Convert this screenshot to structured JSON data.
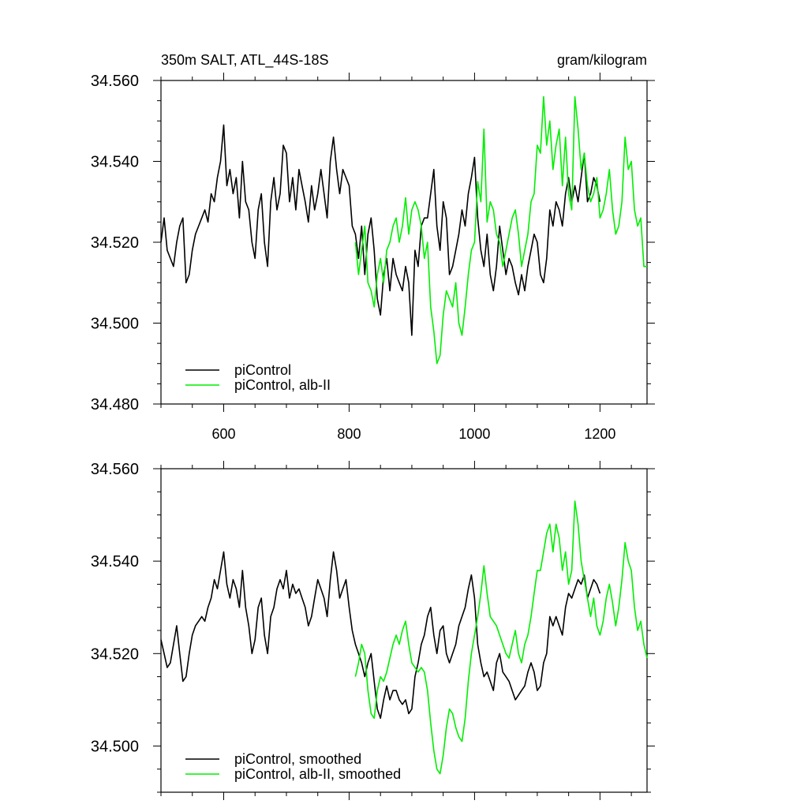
{
  "figure": {
    "title_left": "350m SALT, ATL_44S-18S",
    "title_right": "gram/kilogram"
  },
  "chart_data": [
    {
      "type": "line",
      "title": "350m SALT, ATL_44S-18S",
      "units": "gram/kilogram",
      "xlim": [
        500,
        1275
      ],
      "ylim": [
        34.48,
        34.56
      ],
      "xticks": [
        600,
        800,
        1000,
        1200
      ],
      "xtick_labels": [
        "600",
        "800",
        "1000",
        "1200"
      ],
      "yticks": [
        34.48,
        34.5,
        34.52,
        34.54,
        34.56
      ],
      "ytick_labels": [
        "34.480",
        "34.500",
        "34.520",
        "34.540",
        "34.560"
      ],
      "legend_position": "bottom-left",
      "series": [
        {
          "name": "piControl",
          "color": "#000000",
          "x": [
            500,
            505,
            510,
            515,
            520,
            525,
            530,
            535,
            540,
            545,
            550,
            555,
            560,
            565,
            570,
            575,
            580,
            585,
            590,
            595,
            600,
            605,
            610,
            615,
            620,
            625,
            630,
            635,
            640,
            645,
            650,
            655,
            660,
            665,
            670,
            675,
            680,
            685,
            690,
            695,
            700,
            705,
            710,
            715,
            720,
            725,
            730,
            735,
            740,
            745,
            750,
            755,
            760,
            765,
            770,
            775,
            780,
            785,
            790,
            795,
            800,
            805,
            810,
            815,
            820,
            825,
            830,
            835,
            840,
            845,
            850,
            855,
            860,
            865,
            870,
            875,
            880,
            885,
            890,
            895,
            900,
            905,
            910,
            915,
            920,
            925,
            930,
            935,
            940,
            945,
            950,
            955,
            960,
            965,
            970,
            975,
            980,
            985,
            990,
            995,
            1000,
            1005,
            1010,
            1015,
            1020,
            1025,
            1030,
            1035,
            1040,
            1045,
            1050,
            1055,
            1060,
            1065,
            1070,
            1075,
            1080,
            1085,
            1090,
            1095,
            1100,
            1105,
            1110,
            1115,
            1120,
            1125,
            1130,
            1135,
            1140,
            1145,
            1150,
            1155,
            1160,
            1165,
            1170,
            1175,
            1180,
            1185,
            1190,
            1195,
            1200
          ],
          "y": [
            34.52,
            34.526,
            34.518,
            34.516,
            34.514,
            34.52,
            34.524,
            34.526,
            34.51,
            34.512,
            34.518,
            34.522,
            34.524,
            34.526,
            34.528,
            34.525,
            34.532,
            34.53,
            34.536,
            34.54,
            34.549,
            34.534,
            34.538,
            34.532,
            34.536,
            34.526,
            34.54,
            34.53,
            34.528,
            34.52,
            34.516,
            34.528,
            34.532,
            34.52,
            34.514,
            34.53,
            34.536,
            34.528,
            34.532,
            34.544,
            34.542,
            34.53,
            34.536,
            34.528,
            34.538,
            34.534,
            34.53,
            34.525,
            34.534,
            34.528,
            34.532,
            34.538,
            34.532,
            34.526,
            34.54,
            34.546,
            34.538,
            34.532,
            34.538,
            34.536,
            34.534,
            34.524,
            34.522,
            34.516,
            34.524,
            34.512,
            34.522,
            34.526,
            34.518,
            34.506,
            34.502,
            34.512,
            34.516,
            34.508,
            34.516,
            34.512,
            34.51,
            34.508,
            34.514,
            34.51,
            34.497,
            34.518,
            34.514,
            34.524,
            34.526,
            34.526,
            34.532,
            34.538,
            34.524,
            34.518,
            34.53,
            34.526,
            34.512,
            34.514,
            34.518,
            34.522,
            34.528,
            34.524,
            34.532,
            34.536,
            34.541,
            34.526,
            34.518,
            34.514,
            34.522,
            34.512,
            34.508,
            34.514,
            34.524,
            34.518,
            34.512,
            34.516,
            34.514,
            34.51,
            34.507,
            34.512,
            34.508,
            34.514,
            34.518,
            34.522,
            34.52,
            34.512,
            34.51,
            34.516,
            34.528,
            34.524,
            34.53,
            34.528,
            34.524,
            34.532,
            34.536,
            34.53,
            34.534,
            34.53,
            34.536,
            34.542,
            34.53,
            34.532,
            34.536,
            34.534,
            34.53
          ]
        },
        {
          "name": "piControl, alb-II",
          "color": "#00ee00",
          "x": [
            810,
            815,
            820,
            825,
            830,
            835,
            840,
            845,
            850,
            855,
            860,
            865,
            870,
            875,
            880,
            885,
            890,
            895,
            900,
            905,
            910,
            915,
            920,
            925,
            930,
            935,
            940,
            945,
            950,
            955,
            960,
            965,
            970,
            975,
            980,
            985,
            990,
            995,
            1000,
            1005,
            1010,
            1015,
            1020,
            1025,
            1030,
            1035,
            1040,
            1045,
            1050,
            1055,
            1060,
            1065,
            1070,
            1075,
            1080,
            1085,
            1090,
            1095,
            1100,
            1105,
            1110,
            1115,
            1120,
            1125,
            1130,
            1135,
            1140,
            1145,
            1150,
            1155,
            1160,
            1165,
            1170,
            1175,
            1180,
            1185,
            1190,
            1195,
            1200,
            1205,
            1210,
            1215,
            1220,
            1225,
            1230,
            1235,
            1240,
            1245,
            1250,
            1255,
            1260,
            1265,
            1270,
            1275
          ],
          "y": [
            34.52,
            34.512,
            34.518,
            34.524,
            34.51,
            34.508,
            34.504,
            34.512,
            34.516,
            34.51,
            34.518,
            34.52,
            34.524,
            34.526,
            34.52,
            34.524,
            34.531,
            34.522,
            34.528,
            34.53,
            34.528,
            34.524,
            34.516,
            34.52,
            34.504,
            34.498,
            34.49,
            34.492,
            34.502,
            34.508,
            34.506,
            34.504,
            34.51,
            34.5,
            34.497,
            34.504,
            34.512,
            34.518,
            34.52,
            34.535,
            34.53,
            34.548,
            34.525,
            34.53,
            34.528,
            34.522,
            34.52,
            34.514,
            34.518,
            34.522,
            34.526,
            34.528,
            34.522,
            34.514,
            34.518,
            34.522,
            34.53,
            34.532,
            34.544,
            34.542,
            34.556,
            34.544,
            34.55,
            34.538,
            34.544,
            34.548,
            34.534,
            34.546,
            34.532,
            34.528,
            34.556,
            34.548,
            34.538,
            34.542,
            34.534,
            34.53,
            34.532,
            34.536,
            34.526,
            34.528,
            34.532,
            34.538,
            34.528,
            34.522,
            34.524,
            34.53,
            34.546,
            34.538,
            34.54,
            34.528,
            34.524,
            34.526,
            34.514,
            34.514
          ]
        }
      ]
    },
    {
      "type": "line",
      "xlim": [
        500,
        1275
      ],
      "ylim": [
        34.49,
        34.56
      ],
      "xticks": [
        600,
        800,
        1000,
        1200
      ],
      "yticks": [
        34.5,
        34.52,
        34.54,
        34.56
      ],
      "ytick_labels": [
        "34.500",
        "34.520",
        "34.540",
        "34.560"
      ],
      "legend_position": "bottom-left",
      "series": [
        {
          "name": "piControl, smoothed",
          "color": "#000000",
          "x": [
            500,
            505,
            510,
            515,
            520,
            525,
            530,
            535,
            540,
            545,
            550,
            555,
            560,
            565,
            570,
            575,
            580,
            585,
            590,
            595,
            600,
            605,
            610,
            615,
            620,
            625,
            630,
            635,
            640,
            645,
            650,
            655,
            660,
            665,
            670,
            675,
            680,
            685,
            690,
            695,
            700,
            705,
            710,
            715,
            720,
            725,
            730,
            735,
            740,
            745,
            750,
            755,
            760,
            765,
            770,
            775,
            780,
            785,
            790,
            795,
            800,
            805,
            810,
            815,
            820,
            825,
            830,
            835,
            840,
            845,
            850,
            855,
            860,
            865,
            870,
            875,
            880,
            885,
            890,
            895,
            900,
            905,
            910,
            915,
            920,
            925,
            930,
            935,
            940,
            945,
            950,
            955,
            960,
            965,
            970,
            975,
            980,
            985,
            990,
            995,
            1000,
            1005,
            1010,
            1015,
            1020,
            1025,
            1030,
            1035,
            1040,
            1045,
            1050,
            1055,
            1060,
            1065,
            1070,
            1075,
            1080,
            1085,
            1090,
            1095,
            1100,
            1105,
            1110,
            1115,
            1120,
            1125,
            1130,
            1135,
            1140,
            1145,
            1150,
            1155,
            1160,
            1165,
            1170,
            1175,
            1180,
            1185,
            1190,
            1195,
            1200
          ],
          "y": [
            34.523,
            34.52,
            34.517,
            34.518,
            34.522,
            34.526,
            34.52,
            34.514,
            34.515,
            34.52,
            34.524,
            34.526,
            34.527,
            34.528,
            34.527,
            34.53,
            34.532,
            34.536,
            34.534,
            34.538,
            34.542,
            34.535,
            34.532,
            34.536,
            34.534,
            34.53,
            34.538,
            34.53,
            34.526,
            34.52,
            34.523,
            34.53,
            34.532,
            34.524,
            34.52,
            34.528,
            34.53,
            34.534,
            34.536,
            34.534,
            34.538,
            34.532,
            34.535,
            34.533,
            34.534,
            34.532,
            34.53,
            34.526,
            34.528,
            34.532,
            34.536,
            34.534,
            34.532,
            34.528,
            34.536,
            34.542,
            34.538,
            34.532,
            34.534,
            34.536,
            34.53,
            34.525,
            34.522,
            34.52,
            34.518,
            34.515,
            34.518,
            34.52,
            34.514,
            34.508,
            34.506,
            34.51,
            34.513,
            34.51,
            34.512,
            34.512,
            34.51,
            34.509,
            34.51,
            34.507,
            34.508,
            34.515,
            34.518,
            34.522,
            34.524,
            34.528,
            34.53,
            34.524,
            34.52,
            34.525,
            34.526,
            34.52,
            34.518,
            34.52,
            34.522,
            34.526,
            34.528,
            34.53,
            34.534,
            34.537,
            34.532,
            34.522,
            34.518,
            34.515,
            34.516,
            34.514,
            34.512,
            34.518,
            34.52,
            34.516,
            34.515,
            34.514,
            34.512,
            34.51,
            34.511,
            34.512,
            34.513,
            34.516,
            34.518,
            34.516,
            34.512,
            34.513,
            34.518,
            34.52,
            34.528,
            34.526,
            34.528,
            34.526,
            34.524,
            34.53,
            34.533,
            34.532,
            34.534,
            34.536,
            34.535,
            34.537,
            34.532,
            34.534,
            34.536,
            34.535,
            34.533
          ]
        },
        {
          "name": "piControl, alb-II, smoothed",
          "color": "#00ee00",
          "x": [
            810,
            815,
            820,
            825,
            830,
            835,
            840,
            845,
            850,
            855,
            860,
            865,
            870,
            875,
            880,
            885,
            890,
            895,
            900,
            905,
            910,
            915,
            920,
            925,
            930,
            935,
            940,
            945,
            950,
            955,
            960,
            965,
            970,
            975,
            980,
            985,
            990,
            995,
            1000,
            1005,
            1010,
            1015,
            1020,
            1025,
            1030,
            1035,
            1040,
            1045,
            1050,
            1055,
            1060,
            1065,
            1070,
            1075,
            1080,
            1085,
            1090,
            1095,
            1100,
            1105,
            1110,
            1115,
            1120,
            1125,
            1130,
            1135,
            1140,
            1145,
            1150,
            1155,
            1160,
            1165,
            1170,
            1175,
            1180,
            1185,
            1190,
            1195,
            1200,
            1205,
            1210,
            1215,
            1220,
            1225,
            1230,
            1235,
            1240,
            1245,
            1250,
            1255,
            1260,
            1265,
            1270,
            1275
          ],
          "y": [
            34.515,
            34.518,
            34.522,
            34.52,
            34.512,
            34.507,
            34.506,
            34.512,
            34.515,
            34.514,
            34.516,
            34.519,
            34.522,
            34.524,
            34.522,
            34.525,
            34.527,
            34.522,
            34.518,
            34.517,
            34.516,
            34.517,
            34.516,
            34.512,
            34.505,
            34.499,
            34.495,
            34.494,
            34.498,
            34.504,
            34.508,
            34.507,
            34.504,
            34.502,
            34.501,
            34.506,
            34.514,
            34.52,
            34.524,
            34.528,
            34.533,
            34.539,
            34.533,
            34.528,
            34.527,
            34.526,
            34.524,
            34.522,
            34.52,
            34.519,
            34.522,
            34.525,
            34.52,
            34.518,
            34.522,
            34.524,
            34.528,
            34.533,
            34.538,
            34.538,
            34.542,
            34.546,
            34.548,
            34.542,
            34.548,
            34.545,
            34.538,
            34.542,
            34.535,
            34.538,
            34.553,
            34.548,
            34.54,
            34.536,
            34.532,
            34.528,
            34.532,
            34.526,
            34.524,
            34.527,
            34.532,
            34.535,
            34.531,
            34.526,
            34.53,
            34.536,
            34.544,
            34.54,
            34.538,
            34.53,
            34.525,
            34.527,
            34.522,
            34.519
          ]
        }
      ]
    }
  ]
}
